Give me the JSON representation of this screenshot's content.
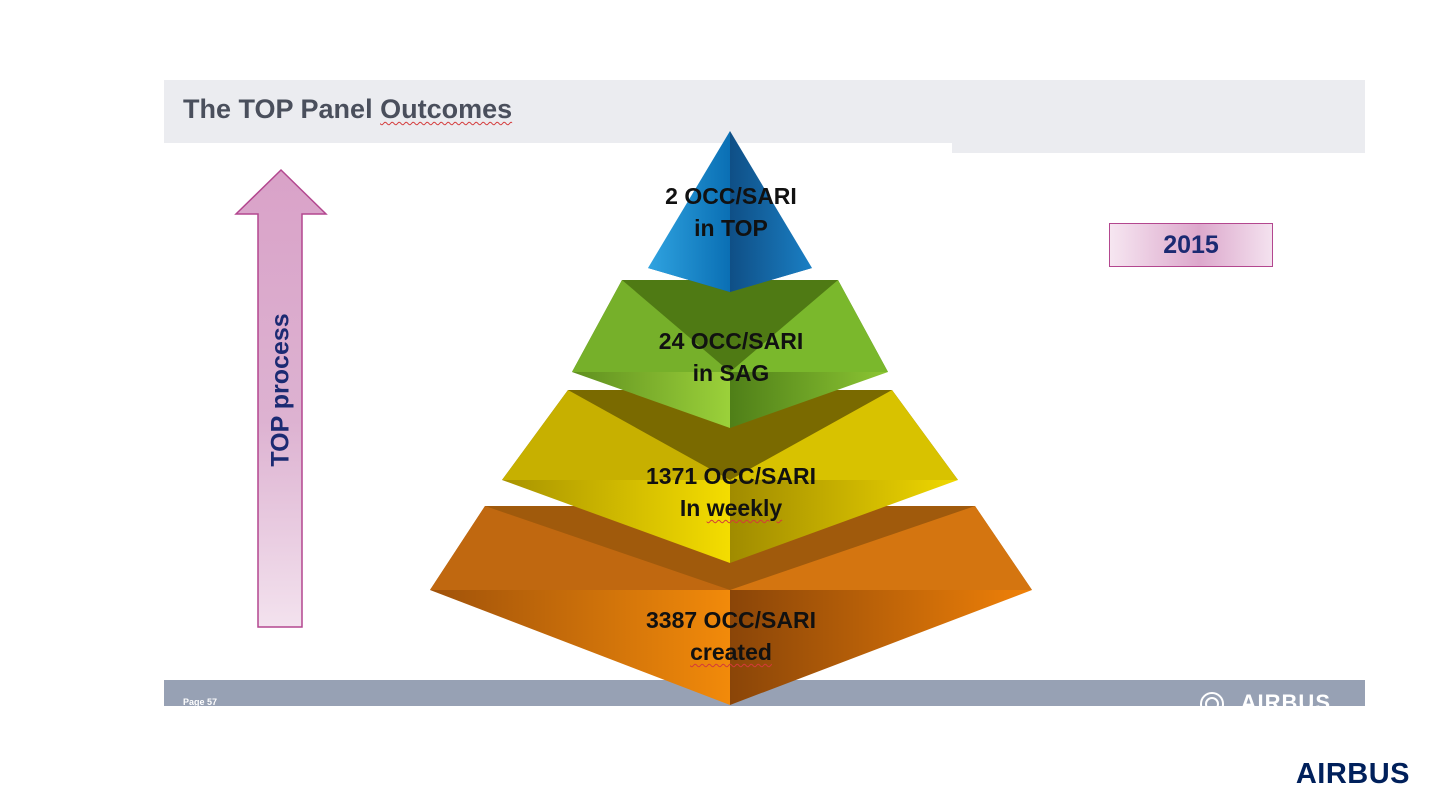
{
  "slide": {
    "title": {
      "plain": "The TOP Panel ",
      "underlined": "Outcomes"
    },
    "page_label": "Page 57",
    "footer_logo": "AIRBUS"
  },
  "arrow_label": "TOP process",
  "year_label": "2015",
  "pyramid": {
    "tiers": [
      {
        "line1": "2 OCC/SARI",
        "line2": "in TOP",
        "color": "#1e8fd0"
      },
      {
        "line1": "24 OCC/SARI",
        "line2": "in SAG",
        "color": "#7cbf2a"
      },
      {
        "line1": "1371 OCC/SARI",
        "line2_plain": "In ",
        "line2_underlined": "weekly",
        "color": "#e8cc00"
      },
      {
        "line1": "3387 OCC/SARI",
        "line2_underlined": "created",
        "color": "#e8780a"
      }
    ]
  },
  "brand_logo": "AIRBUS",
  "colors": {
    "title_band": "#ebecf0",
    "footer_band": "#97a1b4",
    "arrow_border": "#b3478f",
    "accent_navy": "#1b2a72",
    "brand": "#00205b"
  }
}
